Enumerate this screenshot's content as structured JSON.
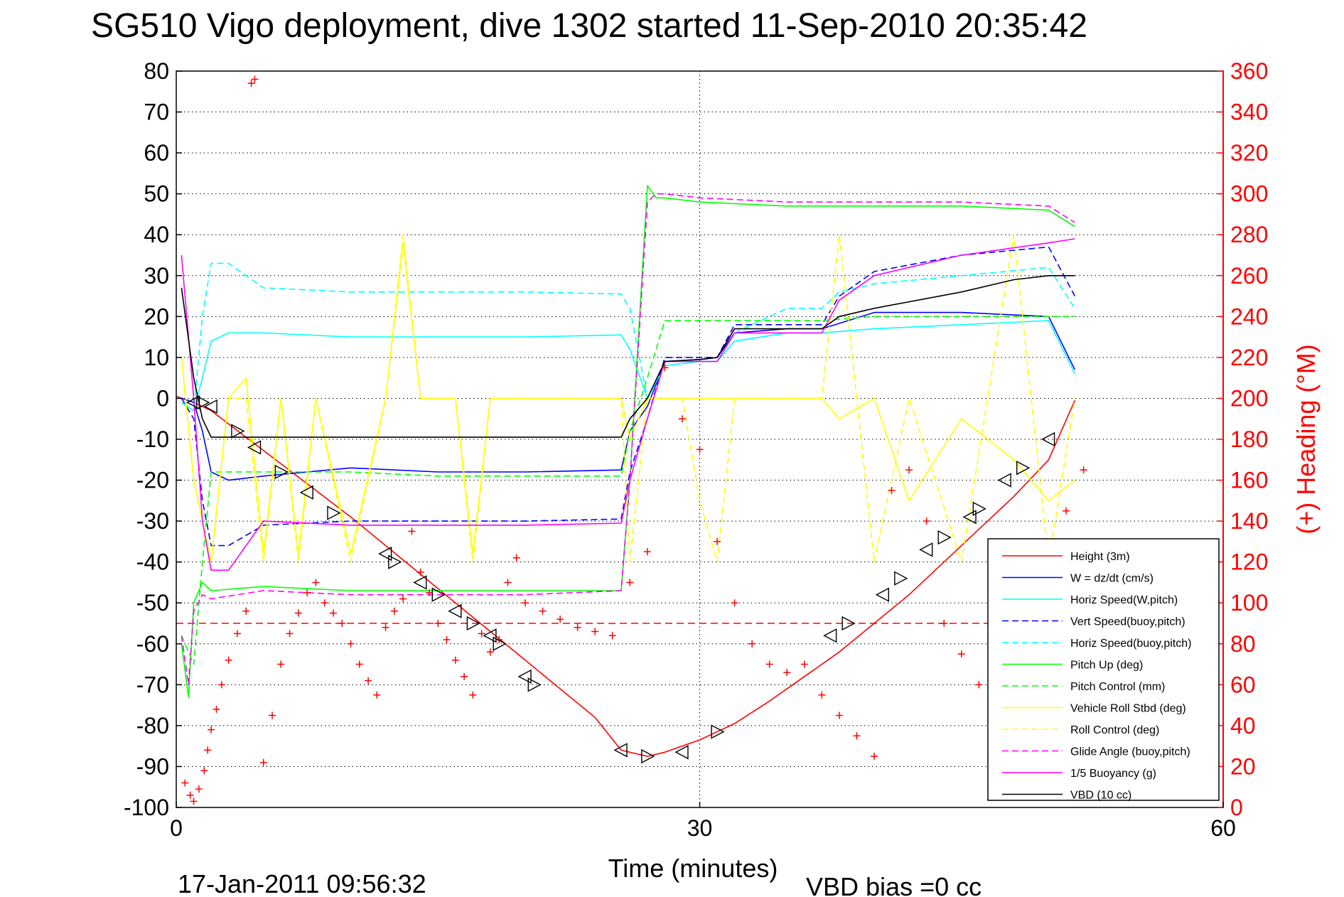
{
  "chart_data": {
    "type": "line",
    "title": "SG510 Vigo deployment, dive 1302 started 11-Sep-2010 20:35:42",
    "xlabel": "Time (minutes)",
    "ylabel_right": "(+) Heading (°M)",
    "xlim": [
      0,
      60
    ],
    "ylim": [
      -100,
      80
    ],
    "ylim_right": [
      0,
      360
    ],
    "x_ticks": [
      "0",
      "30",
      "60"
    ],
    "y_ticks": [
      "80",
      "70",
      "60",
      "50",
      "40",
      "30",
      "20",
      "10",
      "0",
      "-10",
      "-20",
      "-30",
      "-40",
      "-50",
      "-60",
      "-70",
      "-80",
      "-90",
      "-100"
    ],
    "y_ticks_right": [
      "360",
      "340",
      "320",
      "300",
      "280",
      "260",
      "240",
      "220",
      "200",
      "180",
      "160",
      "140",
      "120",
      "100",
      "80",
      "60",
      "40",
      "20",
      "0"
    ],
    "grid": true,
    "legend_position": "bottom-right",
    "footer_date": "17-Jan-2011 09:56:32",
    "footer_note": "VBD bias =0 cc",
    "series": [
      {
        "name": "Height (3m)",
        "color": "#ff0000",
        "dash": "solid",
        "x": [
          0,
          1,
          2,
          4,
          6,
          8,
          10,
          12,
          14,
          16,
          18,
          20,
          22,
          24,
          25.5,
          27,
          28,
          30,
          32,
          34,
          36,
          38,
          40,
          42,
          44,
          46,
          48,
          50,
          51.5
        ],
        "y": [
          0.5,
          -1,
          -3,
          -9.5,
          -16,
          -22.5,
          -29,
          -36,
          -43,
          -50,
          -57,
          -64,
          -71,
          -78,
          -86,
          -87.5,
          -86.5,
          -83.5,
          -79.5,
          -74,
          -68,
          -62,
          -55,
          -48,
          -40,
          -32,
          -24,
          -15,
          -0.5
        ]
      },
      {
        "name": "W = dz/dt (cm/s)",
        "color": "#0000ff",
        "dash": "solid",
        "x": [
          0.3,
          1,
          1.5,
          2,
          3,
          5,
          10,
          15,
          20,
          25.5,
          26,
          27,
          28,
          30,
          31,
          32,
          35,
          37,
          40,
          45,
          50,
          51.5
        ],
        "y": [
          0,
          -1,
          -8,
          -18,
          -20,
          -19,
          -17,
          -18,
          -18,
          -17.5,
          -8,
          -2,
          9,
          9.5,
          10,
          16,
          17,
          17,
          21,
          21,
          20,
          7
        ]
      },
      {
        "name": "Horiz Speed(W,pitch)",
        "color": "#00ffff",
        "dash": "solid",
        "x": [
          0.3,
          1,
          1.5,
          2,
          3,
          5,
          10,
          15,
          20,
          25.5,
          26,
          27,
          28,
          30,
          31,
          32,
          35,
          37,
          40,
          45,
          50,
          51.5
        ],
        "y": [
          -1,
          -3,
          5,
          14,
          16,
          16,
          15,
          15,
          15,
          15.5,
          12,
          0,
          8,
          9,
          9,
          14,
          16,
          16,
          17,
          18,
          19,
          6
        ]
      },
      {
        "name": "Vert Speed(buoy,pitch)",
        "color": "#0000ff",
        "dash": "dashed",
        "x": [
          0.3,
          1,
          1.5,
          2,
          3,
          5,
          10,
          15,
          20,
          25.5,
          26,
          27,
          28,
          30,
          31,
          32,
          35,
          37,
          38,
          40,
          45,
          50,
          51.5
        ],
        "y": [
          0,
          -5,
          -25,
          -36,
          -36,
          -31,
          -30,
          -30,
          -30,
          -29.5,
          -18,
          -5,
          10,
          10,
          10,
          18,
          18,
          18,
          25,
          31,
          35,
          37,
          25
        ]
      },
      {
        "name": "Horiz Speed(buoy,pitch)",
        "color": "#00ffff",
        "dash": "dashed",
        "x": [
          0.3,
          1,
          1.5,
          2,
          3,
          5,
          10,
          15,
          20,
          25.5,
          26,
          27,
          28,
          30,
          31,
          32,
          35,
          37,
          38,
          40,
          45,
          50,
          51.5
        ],
        "y": [
          -1,
          -3,
          20,
          33,
          33,
          27,
          26,
          26,
          26,
          25.5,
          22,
          0,
          9,
          9,
          9,
          16,
          22,
          22,
          26,
          28,
          30,
          32,
          22
        ]
      },
      {
        "name": "Pitch Up (deg)",
        "color": "#00ff00",
        "dash": "solid",
        "x": [
          0.3,
          0.7,
          1,
          1.5,
          2,
          5,
          10,
          15,
          20,
          25.5,
          26,
          27,
          27.5,
          28,
          30,
          35,
          40,
          45,
          50,
          51.5
        ],
        "y": [
          -60,
          -73,
          -50,
          -45,
          -47,
          -46,
          -47,
          -47,
          -47,
          -47,
          -20,
          52,
          49,
          49,
          48,
          47,
          47,
          47,
          46,
          42
        ]
      },
      {
        "name": "Pitch Control (mm)",
        "color": "#00ff00",
        "dash": "dashed",
        "x": [
          0.3,
          1,
          1.5,
          2,
          5,
          10,
          15,
          20,
          25.5,
          26,
          27,
          28,
          30,
          35,
          37,
          40,
          45,
          50,
          51.5
        ],
        "y": [
          -58,
          -65,
          -40,
          -18,
          -18,
          -18,
          -19,
          -19,
          -19,
          -8,
          5,
          19,
          19,
          19,
          19,
          20,
          20,
          20,
          20
        ]
      },
      {
        "name": "Vehicle Roll Stbd (deg)",
        "color": "#ffff00",
        "dash": "solid",
        "x": [
          0.3,
          1,
          2,
          3,
          4,
          5,
          6,
          7,
          8,
          10,
          12,
          13,
          14,
          15,
          16,
          17,
          18,
          20,
          22,
          25.5,
          26,
          27,
          28,
          29,
          30,
          31,
          32,
          35,
          37,
          38,
          40,
          42,
          45,
          48,
          50,
          51.5
        ],
        "y": [
          10,
          -20,
          -40,
          0,
          5,
          -38,
          0,
          -38,
          0,
          -38,
          0,
          38,
          0,
          0,
          0,
          -38,
          0,
          0,
          0,
          0,
          -10,
          0,
          0,
          0,
          0,
          0,
          0,
          0,
          0,
          -5,
          0,
          -25,
          -5,
          -15,
          -25,
          -20
        ]
      },
      {
        "name": "Roll Control (deg)",
        "color": "#ffff00",
        "dash": "dashed",
        "x": [
          0.3,
          1,
          2,
          3,
          4,
          5,
          6,
          7,
          8,
          10,
          12,
          13,
          14,
          15,
          16,
          17,
          18,
          20,
          22,
          25.5,
          26,
          27,
          28,
          29,
          30,
          31,
          32,
          35,
          37,
          38,
          40,
          42,
          45,
          48,
          50,
          51.5
        ],
        "y": [
          10,
          -20,
          -40,
          0,
          0,
          -40,
          0,
          -40,
          0,
          -40,
          0,
          40,
          0,
          0,
          0,
          -40,
          0,
          0,
          0,
          0,
          -40,
          0,
          0,
          0,
          -25,
          -40,
          0,
          0,
          0,
          40,
          -40,
          0,
          -40,
          40,
          -40,
          0
        ]
      },
      {
        "name": "Glide Angle (buoy,pitch)",
        "color": "#ff00ff",
        "dash": "dashed",
        "x": [
          0.3,
          0.7,
          1,
          1.5,
          2,
          5,
          10,
          15,
          20,
          25.5,
          26,
          27,
          27.5,
          28,
          30,
          35,
          40,
          45,
          50,
          51.5
        ],
        "y": [
          -58,
          -70,
          -52,
          -48,
          -49,
          -47,
          -48,
          -48,
          -48,
          -47,
          -20,
          48,
          50,
          50,
          49,
          48,
          48,
          48,
          47,
          43
        ]
      },
      {
        "name": "1/5 Buoyancy (g)",
        "color": "#ff00ff",
        "dash": "solid",
        "x": [
          0.3,
          1,
          1.5,
          2,
          3,
          5,
          10,
          15,
          20,
          25.5,
          26,
          27,
          28,
          30,
          31,
          32,
          35,
          37,
          38,
          40,
          45,
          50,
          51.5
        ],
        "y": [
          35,
          0,
          -30,
          -42,
          -42,
          -30,
          -31,
          -31,
          -31,
          -30.5,
          -20,
          -5,
          9,
          9,
          9,
          16,
          16,
          16,
          24,
          30,
          35,
          38,
          39
        ]
      },
      {
        "name": "VBD (10 cc)",
        "color": "#000000",
        "dash": "solid",
        "x": [
          0.3,
          1,
          1.5,
          2,
          5,
          10,
          15,
          20,
          25.5,
          26,
          27,
          28,
          30,
          31,
          32,
          35,
          37,
          38,
          40,
          45,
          48,
          50,
          51.5
        ],
        "y": [
          27,
          5,
          -5,
          -9.5,
          -9.5,
          -9.5,
          -9.5,
          -9.5,
          -9.5,
          -5,
          0,
          9,
          9.5,
          10,
          17,
          17,
          17,
          20,
          22,
          26,
          29,
          30,
          30
        ]
      }
    ],
    "heading_axis": "right",
    "heading_reference": 90,
    "heading": {
      "color": "#ff0000",
      "marker": "+",
      "x": [
        0.5,
        0.8,
        1,
        1.3,
        1.6,
        1.8,
        2,
        2.3,
        2.6,
        3,
        3.5,
        4,
        4.3,
        4.5,
        5,
        5.5,
        6,
        6.5,
        7,
        7.5,
        8,
        8.5,
        9,
        9.5,
        10,
        10.5,
        11,
        11.5,
        12,
        12.5,
        13,
        13.5,
        14,
        14.5,
        15,
        15.5,
        16,
        16.5,
        17,
        17.5,
        18,
        18.5,
        19,
        19.5,
        20,
        21,
        22,
        23,
        24,
        25,
        26,
        27,
        28,
        29,
        30,
        31,
        32,
        33,
        34,
        35,
        36,
        37,
        38,
        39,
        40,
        41,
        42,
        43,
        44,
        45,
        46,
        47,
        48,
        49,
        50,
        51,
        52
      ],
      "y": [
        12,
        6,
        3,
        9,
        18,
        28,
        38,
        48,
        60,
        72,
        85,
        96,
        354,
        356,
        22,
        45,
        70,
        85,
        95,
        105,
        110,
        100,
        95,
        90,
        80,
        70,
        62,
        55,
        88,
        96,
        102,
        135,
        115,
        105,
        90,
        82,
        72,
        64,
        55,
        85,
        76,
        82,
        110,
        122,
        100,
        96,
        92,
        88,
        86,
        84,
        110,
        125,
        215,
        190,
        175,
        130,
        100,
        80,
        70,
        66,
        70,
        55,
        45,
        35,
        25,
        155,
        165,
        140,
        90,
        75,
        60,
        50,
        105,
        118,
        125,
        145,
        165
      ]
    },
    "markers": {
      "color": "#000000",
      "shape": "triangle",
      "x": [
        1,
        1.5,
        2,
        3.5,
        4.5,
        6,
        7.5,
        9,
        12,
        12.5,
        14,
        15,
        16,
        17,
        18,
        18.5,
        20,
        20.5,
        25.5,
        27,
        29,
        31,
        37.5,
        38.5,
        40.5,
        41.5,
        43,
        44,
        45.5,
        46,
        47.5,
        48.5,
        50
      ],
      "y": [
        -1,
        -1,
        -2,
        -8,
        -12,
        -18,
        -23,
        -28,
        -38,
        -40,
        -45,
        -48,
        -52,
        -55,
        -58,
        -60,
        -68,
        -70,
        -86,
        -87.5,
        -86.5,
        -81.5,
        -58,
        -55,
        -48,
        -44,
        -37,
        -34,
        -29,
        -27,
        -20,
        -17,
        -10
      ]
    }
  }
}
